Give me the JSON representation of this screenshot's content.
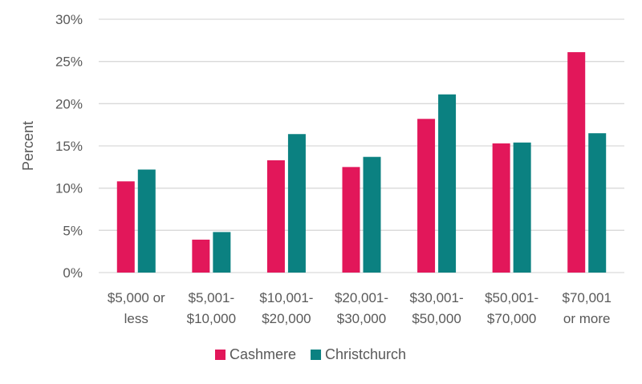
{
  "chart_data": {
    "type": "bar",
    "title": "",
    "xlabel": "",
    "ylabel": "Percent",
    "ylim": [
      0,
      30
    ],
    "yticks": [
      "0%",
      "5%",
      "10%",
      "15%",
      "20%",
      "25%",
      "30%"
    ],
    "grid": true,
    "legend_position": "bottom",
    "categories": [
      [
        "$5,000 or",
        "less"
      ],
      [
        "$5,001-",
        "$10,000"
      ],
      [
        "$10,001-",
        "$20,000"
      ],
      [
        "$20,001-",
        "$30,000"
      ],
      [
        "$30,001-",
        "$50,000"
      ],
      [
        "$50,001-",
        "$70,000"
      ],
      [
        "$70,001",
        "or more"
      ]
    ],
    "series": [
      {
        "name": "Cashmere",
        "color": "#e2175a",
        "values": [
          10.8,
          3.9,
          13.3,
          12.5,
          18.2,
          15.3,
          26.1
        ]
      },
      {
        "name": "Christchurch",
        "color": "#0b8181",
        "values": [
          12.2,
          4.8,
          16.4,
          13.7,
          21.1,
          15.4,
          16.5
        ]
      }
    ]
  }
}
